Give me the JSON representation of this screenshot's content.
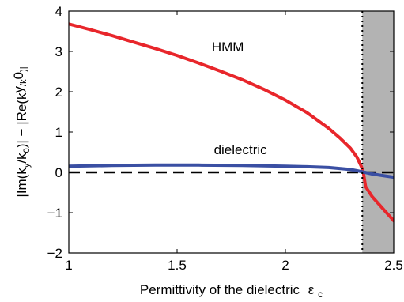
{
  "chart_data": {
    "type": "line",
    "xlabel": "Permittivity of the dielectric",
    "xlabel_symbol": "ε",
    "xlabel_symbol_sub": "c",
    "ylabel": "|Im(k",
    "ylabel_parts": [
      "|Im(k",
      "y",
      "/k",
      "0",
      ")| − |Re(k",
      "y",
      "/k",
      "0",
      ")|"
    ],
    "xlim": [
      1,
      2.5
    ],
    "ylim": [
      -2,
      4
    ],
    "x_ticks": [
      1,
      1.5,
      2,
      2.5
    ],
    "x_tick_labels": [
      "1",
      "1.5",
      "2",
      "2.5"
    ],
    "y_ticks": [
      -2,
      -1,
      0,
      1,
      2,
      3,
      4
    ],
    "y_tick_labels": [
      "−2",
      "−1",
      "0",
      "1",
      "2",
      "3",
      "4"
    ],
    "grid": false,
    "shaded_region": {
      "x_start": 2.355,
      "x_end": 2.5,
      "color": "#b3b3b3"
    },
    "vertical_line": {
      "x": 2.355,
      "style": "dotted"
    },
    "zero_line": {
      "y": 0,
      "style": "dashed"
    },
    "series": [
      {
        "name": "HMM",
        "color": "#e8262b",
        "x": [
          1.0,
          1.1,
          1.2,
          1.3,
          1.4,
          1.5,
          1.6,
          1.7,
          1.8,
          1.9,
          2.0,
          2.1,
          2.2,
          2.25,
          2.3,
          2.33,
          2.35,
          2.36,
          2.37,
          2.4,
          2.45,
          2.5
        ],
        "y": [
          3.68,
          3.54,
          3.39,
          3.23,
          3.07,
          2.9,
          2.71,
          2.51,
          2.3,
          2.06,
          1.79,
          1.48,
          1.09,
          0.86,
          0.6,
          0.38,
          0.15,
          0.0,
          -0.35,
          -0.6,
          -0.9,
          -1.2
        ]
      },
      {
        "name": "dielectric",
        "color": "#3a4fa3",
        "x": [
          1.0,
          1.2,
          1.4,
          1.6,
          1.8,
          2.0,
          2.1,
          2.2,
          2.3,
          2.35,
          2.4,
          2.45,
          2.5
        ],
        "y": [
          0.15,
          0.17,
          0.18,
          0.18,
          0.17,
          0.15,
          0.14,
          0.12,
          0.07,
          0.02,
          -0.04,
          -0.08,
          -0.12
        ]
      }
    ],
    "annotations": [
      {
        "text": "HMM",
        "x": 1.66,
        "y": 3.0
      },
      {
        "text": "dielectric",
        "x": 1.67,
        "y": 0.45
      }
    ],
    "colors": {
      "axis": "#000000",
      "zero_line": "#000000"
    }
  }
}
